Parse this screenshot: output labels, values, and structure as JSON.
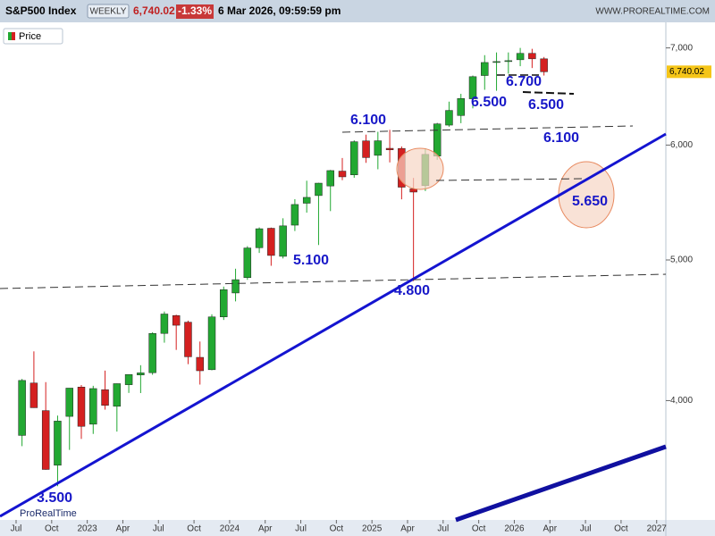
{
  "chart_data": {
    "type": "candlestick",
    "title": "S&P500 Index",
    "timeframe": "WEEKLY",
    "change": "-1.33%",
    "date": "6 Mar 2026, 09:59:59 pm",
    "site": "WWW.PROREALTIME.COM",
    "logo": "ProRealTime",
    "last": {
      "value": 6740.02,
      "label": "6,740.02"
    },
    "log_scale": true,
    "up_color": "#22a832",
    "down_color": "#d42020",
    "x": [
      "2022-07",
      "2022-08",
      "2022-09",
      "2022-10",
      "2022-11",
      "2022-12",
      "2023-01",
      "2023-02",
      "2023-03",
      "2023-04",
      "2023-05",
      "2023-06",
      "2023-07",
      "2023-08",
      "2023-09",
      "2023-10",
      "2023-11",
      "2023-12",
      "2024-01",
      "2024-02",
      "2024-03",
      "2024-04",
      "2024-05",
      "2024-06",
      "2024-07",
      "2024-08",
      "2024-09",
      "2024-10",
      "2024-11",
      "2024-12",
      "2025-01",
      "2025-02",
      "2025-03",
      "2025-04",
      "2025-05",
      "2025-06",
      "2025-07",
      "2025-08",
      "2025-09",
      "2025-10",
      "2025-11",
      "2025-12",
      "2026-01",
      "2026-02",
      "2026-03"
    ],
    "series": [
      {
        "name": "Price",
        "open": [
          3785,
          4113,
          3937,
          3610,
          3901,
          4087,
          3853,
          4070,
          3964,
          4102,
          4166,
          4181,
          4450,
          4578,
          4530,
          4284,
          4201,
          4568,
          4745,
          4862,
          5098,
          5258,
          5029,
          5284,
          5471,
          5538,
          5623,
          5757,
          5723,
          6040,
          5903,
          5969,
          5968,
          5597,
          5626,
          5896,
          6193,
          6288,
          6457,
          6700,
          6850,
          6850,
          6870,
          6940,
          6880
        ],
        "high": [
          4140,
          4325,
          4119,
          3906,
          4080,
          4100,
          4095,
          4195,
          4110,
          4170,
          4231,
          4458,
          4607,
          4584,
          4541,
          4393,
          4587,
          4793,
          4931,
          5111,
          5265,
          5264,
          5342,
          5506,
          5670,
          5651,
          5768,
          5878,
          6045,
          6100,
          6128,
          6147,
          5987,
          5695,
          5969,
          6215,
          6428,
          6508,
          6700,
          6920,
          6950,
          6950,
          7000,
          6990,
          6900
        ],
        "low": [
          3721,
          3954,
          3584,
          3492,
          3699,
          3764,
          3794,
          3943,
          3808,
          4049,
          4048,
          4167,
          4385,
          4335,
          4238,
          4103,
          4197,
          4546,
          4682,
          4845,
          5056,
          4954,
          5012,
          5235,
          5390,
          5120,
          5403,
          5675,
          5697,
          5833,
          5774,
          5837,
          5505,
          4835,
          5578,
          5861,
          6177,
          6212,
          6360,
          6550,
          6540,
          6720,
          6800,
          6780,
          6700
        ],
        "close": [
          4130,
          3955,
          3586,
          3872,
          4080,
          3840,
          4077,
          3970,
          4109,
          4169,
          4180,
          4450,
          4589,
          4508,
          4288,
          4194,
          4568,
          4770,
          4846,
          5096,
          5254,
          5036,
          5278,
          5460,
          5522,
          5648,
          5762,
          5705,
          6032,
          5882,
          6041,
          5955,
          5612,
          5569,
          5912,
          6205,
          6339,
          6460,
          6688,
          6840,
          6850,
          6860,
          6940,
          6880,
          6740
        ]
      }
    ],
    "xlim": [
      "2022-06",
      "2027-02"
    ],
    "xticks": [
      {
        "value": "2022-07",
        "label": "Jul"
      },
      {
        "value": "2022-10",
        "label": "Oct"
      },
      {
        "value": "2023-01",
        "label": "2023"
      },
      {
        "value": "2023-04",
        "label": "Apr"
      },
      {
        "value": "2023-07",
        "label": "Jul"
      },
      {
        "value": "2023-10",
        "label": "Oct"
      },
      {
        "value": "2024-01",
        "label": "2024"
      },
      {
        "value": "2024-04",
        "label": "Apr"
      },
      {
        "value": "2024-07",
        "label": "Jul"
      },
      {
        "value": "2024-10",
        "label": "Oct"
      },
      {
        "value": "2025-01",
        "label": "2025"
      },
      {
        "value": "2025-04",
        "label": "Apr"
      },
      {
        "value": "2025-07",
        "label": "Jul"
      },
      {
        "value": "2025-10",
        "label": "Oct"
      },
      {
        "value": "2026-01",
        "label": "2026"
      },
      {
        "value": "2026-04",
        "label": "Apr"
      },
      {
        "value": "2026-07",
        "label": "Jul"
      },
      {
        "value": "2026-10",
        "label": "Oct"
      },
      {
        "value": "2027-01",
        "label": "2027"
      }
    ],
    "ylim": [
      3310,
      7290
    ],
    "yticks": [
      {
        "value": 4000,
        "label": "4,000"
      },
      {
        "value": 5000,
        "label": "5,000"
      },
      {
        "value": 6000,
        "label": "6,000"
      },
      {
        "value": 7000,
        "label": "7,000"
      }
    ],
    "annotations": [
      "6.700",
      "6.500",
      "6.500",
      "6.100",
      "6.100",
      "5.650",
      "5.100",
      "4.800",
      "3.500"
    ]
  }
}
